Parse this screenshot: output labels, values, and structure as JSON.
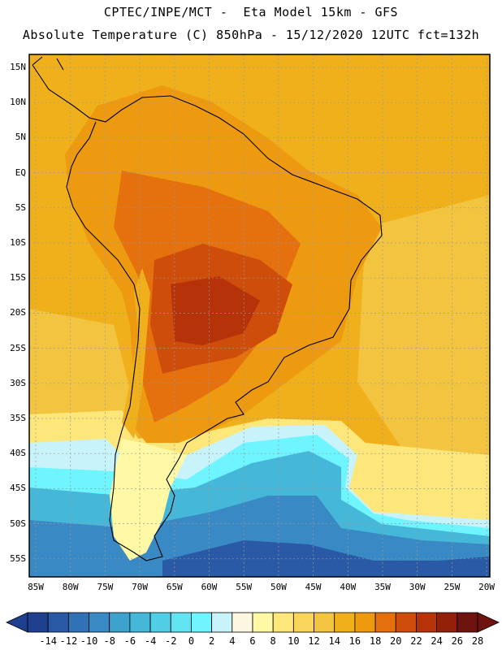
{
  "header": {
    "line1": "CPTEC/INPE/MCT -  Eta Model 15km - GFS",
    "line2": "Absolute Temperature (C) 850hPa - 15/12/2020 12UTC fct=132h"
  },
  "map": {
    "lat_labels": [
      "15N",
      "10N",
      "5N",
      "EQ",
      "5S",
      "10S",
      "15S",
      "20S",
      "25S",
      "30S",
      "35S",
      "40S",
      "45S",
      "50S",
      "55S"
    ],
    "lon_labels": [
      "85W",
      "80W",
      "75W",
      "70W",
      "65W",
      "60W",
      "55W",
      "50W",
      "45W",
      "40W",
      "35W",
      "30W",
      "25W",
      "20W"
    ],
    "field": "Absolute Temperature (C) 850hPa"
  },
  "colorbar": {
    "labels": [
      "-14",
      "-12",
      "-10",
      "-8",
      "-6",
      "-4",
      "-2",
      "0",
      "2",
      "4",
      "6",
      "8",
      "10",
      "12",
      "14",
      "16",
      "18",
      "20",
      "22",
      "24",
      "26",
      "28"
    ],
    "colors": [
      "#1f3f8f",
      "#2a5aa6",
      "#2f72b6",
      "#3889c4",
      "#3ea2cf",
      "#45b8d9",
      "#52cde6",
      "#61e3f2",
      "#6ff5ff",
      "#c9f3fb",
      "#fdf6e0",
      "#fff9a6",
      "#fde67a",
      "#f9d65a",
      "#f3c43f",
      "#f0b01c",
      "#ee9a10",
      "#e4700e",
      "#cf4d0b",
      "#b6330a",
      "#93210a",
      "#6e1310"
    ]
  }
}
